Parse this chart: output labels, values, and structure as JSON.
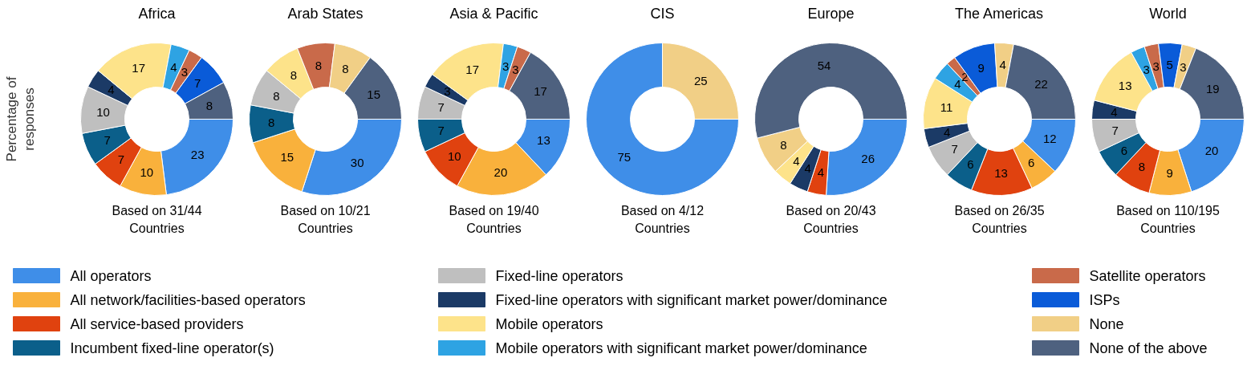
{
  "chart_data": [
    {
      "type": "donut",
      "title": "Africa",
      "ylabel": "Percentage of\nresponses",
      "categories": [
        "All operators",
        "All network/facilities-based operators",
        "All service-based providers",
        "Incumbent fixed-line operator(s)",
        "Fixed-line operators",
        "Fixed-line operators with significant market power/dominance",
        "Mobile operators",
        "Mobile operators with significant market power/dominance",
        "Satellite operators",
        "ISPs",
        "None",
        "None of the above"
      ],
      "values": [
        23,
        10,
        7,
        7,
        10,
        4,
        17,
        4,
        3,
        7,
        null,
        8
      ],
      "colors": [
        "#3f8ee8",
        "#f9b13c",
        "#e0420f",
        "#0b5f8a",
        "#bfbfbf",
        "#1b3a66",
        "#fde38a",
        "#2ea3e3",
        "#c96a4a",
        "#0a5bd8",
        "#f1cf86",
        "#4e617f"
      ],
      "data_labels": true,
      "legend": "bottom",
      "annotations": [
        "Based on 31/44\nCountries"
      ]
    },
    {
      "type": "donut",
      "title": "Arab States",
      "categories": [
        null,
        null,
        null,
        null,
        null,
        null,
        null,
        null,
        null,
        null,
        null,
        null
      ],
      "values": [
        30,
        15,
        null,
        8,
        8,
        null,
        8,
        null,
        8,
        null,
        8,
        15
      ],
      "colors": [
        "#3f8ee8",
        "#f9b13c",
        "#e0420f",
        "#0b5f8a",
        "#bfbfbf",
        "#1b3a66",
        "#fde38a",
        "#2ea3e3",
        "#c96a4a",
        "#0a5bd8",
        "#f1cf86",
        "#4e617f"
      ],
      "data_labels": true,
      "annotations": [
        "Based on 10/21\nCountries"
      ]
    },
    {
      "type": "donut",
      "title": "Asia & Pacific",
      "categories": [
        null,
        null,
        null,
        null,
        null,
        null,
        null,
        null,
        null,
        null,
        null,
        null
      ],
      "values": [
        13,
        20,
        10,
        7,
        7,
        3,
        17,
        3,
        3,
        null,
        null,
        17
      ],
      "colors": [
        "#3f8ee8",
        "#f9b13c",
        "#e0420f",
        "#0b5f8a",
        "#bfbfbf",
        "#1b3a66",
        "#fde38a",
        "#2ea3e3",
        "#c96a4a",
        "#0a5bd8",
        "#f1cf86",
        "#4e617f"
      ],
      "data_labels": true,
      "annotations": [
        "Based on 19/40\nCountries"
      ]
    },
    {
      "type": "donut",
      "title": "CIS",
      "categories": [
        null,
        null,
        null,
        null,
        null,
        null,
        null,
        null,
        null,
        null,
        null,
        null
      ],
      "values": [
        75,
        null,
        null,
        null,
        null,
        null,
        null,
        null,
        null,
        null,
        25,
        null
      ],
      "colors": [
        "#3f8ee8",
        "#f9b13c",
        "#e0420f",
        "#0b5f8a",
        "#bfbfbf",
        "#1b3a66",
        "#fde38a",
        "#2ea3e3",
        "#c96a4a",
        "#0a5bd8",
        "#f1cf86",
        "#4e617f"
      ],
      "data_labels": true,
      "annotations": [
        "Based on 4/12\nCountries"
      ]
    },
    {
      "type": "donut",
      "title": "Europe",
      "categories": [
        null,
        null,
        null,
        null,
        null,
        null,
        null,
        null,
        null,
        null,
        null,
        null
      ],
      "values": [
        26,
        null,
        4,
        null,
        null,
        4,
        4,
        null,
        null,
        null,
        8,
        54
      ],
      "colors": [
        "#3f8ee8",
        "#f9b13c",
        "#e0420f",
        "#0b5f8a",
        "#bfbfbf",
        "#1b3a66",
        "#fde38a",
        "#2ea3e3",
        "#c96a4a",
        "#0a5bd8",
        "#f1cf86",
        "#4e617f"
      ],
      "data_labels": true,
      "annotations": [
        "Based on 20/43\nCountries"
      ]
    },
    {
      "type": "donut",
      "title": "The Americas",
      "categories": [
        null,
        null,
        null,
        null,
        null,
        null,
        null,
        null,
        null,
        null,
        null,
        null
      ],
      "values": [
        12,
        6,
        13,
        6,
        7,
        4,
        11,
        4,
        2,
        9,
        4,
        22
      ],
      "colors": [
        "#3f8ee8",
        "#f9b13c",
        "#e0420f",
        "#0b5f8a",
        "#bfbfbf",
        "#1b3a66",
        "#fde38a",
        "#2ea3e3",
        "#c96a4a",
        "#0a5bd8",
        "#f1cf86",
        "#4e617f"
      ],
      "data_labels": true,
      "annotations": [
        "Based on 26/35\nCountries"
      ]
    },
    {
      "type": "donut",
      "title": "World",
      "categories": [
        null,
        null,
        null,
        null,
        null,
        null,
        null,
        null,
        null,
        null,
        null,
        null
      ],
      "values": [
        20,
        9,
        8,
        6,
        7,
        4,
        13,
        3,
        3,
        5,
        3,
        19
      ],
      "colors": [
        "#3f8ee8",
        "#f9b13c",
        "#e0420f",
        "#0b5f8a",
        "#bfbfbf",
        "#1b3a66",
        "#fde38a",
        "#2ea3e3",
        "#c96a4a",
        "#0a5bd8",
        "#f1cf86",
        "#4e617f"
      ],
      "data_labels": true,
      "annotations": [
        "Based on 110/195\nCountries"
      ]
    }
  ]
}
